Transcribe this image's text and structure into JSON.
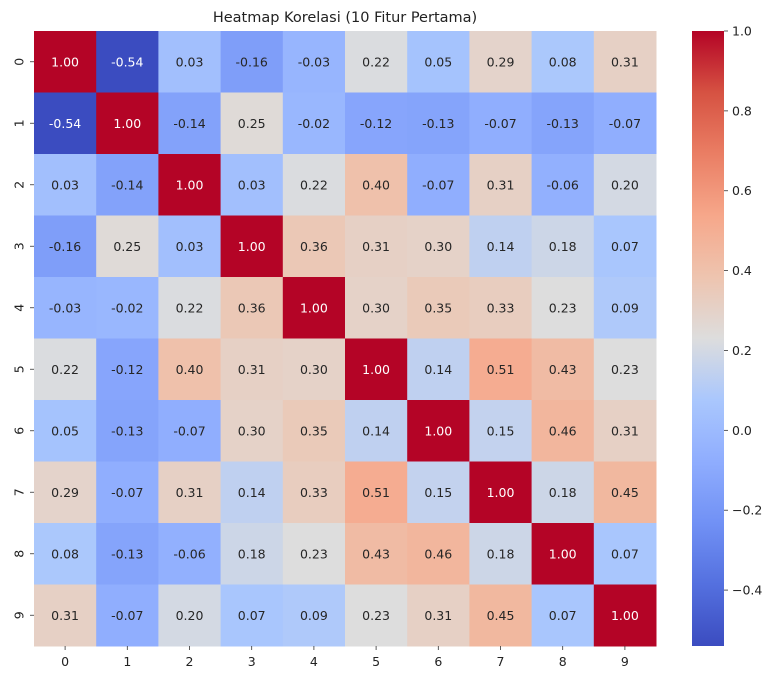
{
  "chart_data": {
    "type": "heatmap",
    "title": "Heatmap Korelasi (10 Fitur Pertama)",
    "xlabel": "",
    "ylabel": "",
    "x_labels": [
      "0",
      "1",
      "2",
      "3",
      "4",
      "5",
      "6",
      "7",
      "8",
      "9"
    ],
    "y_labels": [
      "0",
      "1",
      "2",
      "3",
      "4",
      "5",
      "6",
      "7",
      "8",
      "9"
    ],
    "values": [
      [
        1.0,
        -0.54,
        0.03,
        -0.16,
        -0.03,
        0.22,
        0.05,
        0.29,
        0.08,
        0.31
      ],
      [
        -0.54,
        1.0,
        -0.14,
        0.25,
        -0.02,
        -0.12,
        -0.13,
        -0.07,
        -0.13,
        -0.07
      ],
      [
        0.03,
        -0.14,
        1.0,
        0.03,
        0.22,
        0.4,
        -0.07,
        0.31,
        -0.06,
        0.2
      ],
      [
        -0.16,
        0.25,
        0.03,
        1.0,
        0.36,
        0.31,
        0.3,
        0.14,
        0.18,
        0.07
      ],
      [
        -0.03,
        -0.02,
        0.22,
        0.36,
        1.0,
        0.3,
        0.35,
        0.33,
        0.23,
        0.09
      ],
      [
        0.22,
        -0.12,
        0.4,
        0.31,
        0.3,
        1.0,
        0.14,
        0.51,
        0.43,
        0.23
      ],
      [
        0.05,
        -0.13,
        -0.07,
        0.3,
        0.35,
        0.14,
        1.0,
        0.15,
        0.46,
        0.31
      ],
      [
        0.29,
        -0.07,
        0.31,
        0.14,
        0.33,
        0.51,
        0.15,
        1.0,
        0.18,
        0.45
      ],
      [
        0.08,
        -0.13,
        -0.06,
        0.18,
        0.23,
        0.43,
        0.46,
        0.18,
        1.0,
        0.07
      ],
      [
        0.31,
        -0.07,
        0.2,
        0.07,
        0.09,
        0.23,
        0.31,
        0.45,
        0.07,
        1.0
      ]
    ],
    "annotation_format": "0.00",
    "colormap": "coolwarm",
    "vmin": -0.54,
    "vmax": 1.0,
    "colorbar": {
      "ticks": [
        -0.4,
        -0.2,
        0.0,
        0.2,
        0.4,
        0.6,
        0.8,
        1.0
      ],
      "tick_labels": [
        "−0.4",
        "−0.2",
        "0.0",
        "0.2",
        "0.4",
        "0.6",
        "0.8",
        "1.0"
      ]
    },
    "grid": false,
    "legend": "colorbar-right"
  }
}
